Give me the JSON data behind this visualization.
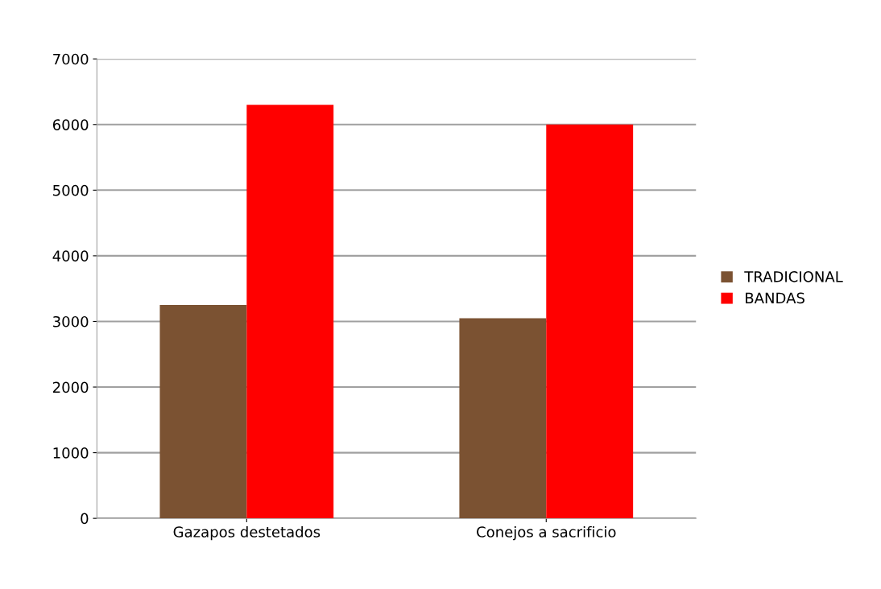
{
  "chart_data": {
    "type": "bar",
    "categories": [
      "Gazapos destetados",
      "Conejos a sacrificio"
    ],
    "series": [
      {
        "name": "TRADICIONAL",
        "color": "#7b5232",
        "values": [
          3250,
          3050
        ]
      },
      {
        "name": "BANDAS",
        "color": "#ff0000",
        "values": [
          6300,
          6000
        ]
      }
    ],
    "ylim": [
      0,
      7000
    ],
    "yticks": [
      0,
      1000,
      2000,
      3000,
      4000,
      5000,
      6000,
      7000
    ],
    "grid": "y",
    "legend": "right"
  }
}
